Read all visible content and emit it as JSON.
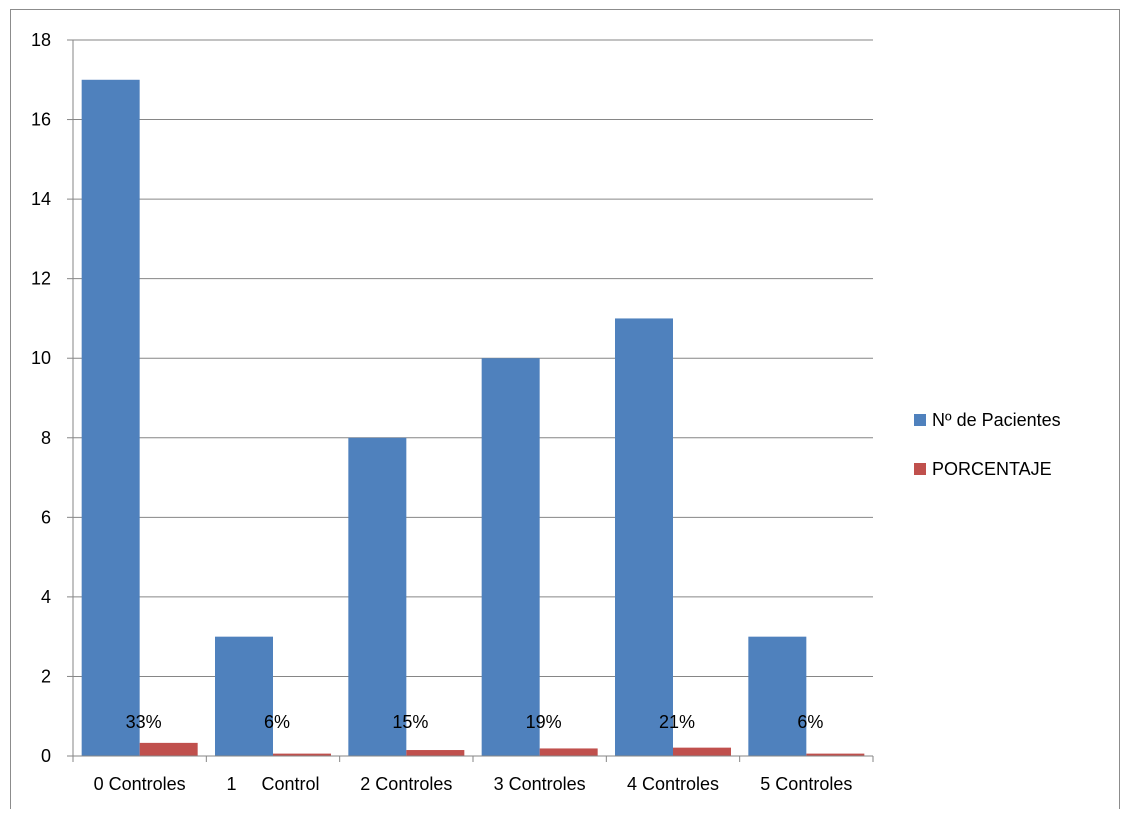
{
  "chart_data": {
    "type": "bar",
    "categories": [
      "0 Controles",
      "1     Control",
      "2 Controles",
      "3 Controles",
      "4 Controles",
      "5 Controles"
    ],
    "series": [
      {
        "name": "Nº de Pacientes",
        "values": [
          17,
          3,
          8,
          10,
          11,
          3
        ],
        "color": "#4F81BD"
      },
      {
        "name": "PORCENTAJE",
        "values": [
          0.33,
          0.06,
          0.15,
          0.19,
          0.21,
          0.06
        ],
        "data_labels": [
          "33%",
          "6%",
          "15%",
          "19%",
          "21%",
          "6%"
        ],
        "color": "#C0504D"
      }
    ],
    "title": "",
    "xlabel": "",
    "ylabel": "",
    "ylim": [
      0,
      18
    ],
    "yticks": [
      0,
      2,
      4,
      6,
      8,
      10,
      12,
      14,
      16,
      18
    ],
    "grid": true,
    "legend_position": "right"
  }
}
